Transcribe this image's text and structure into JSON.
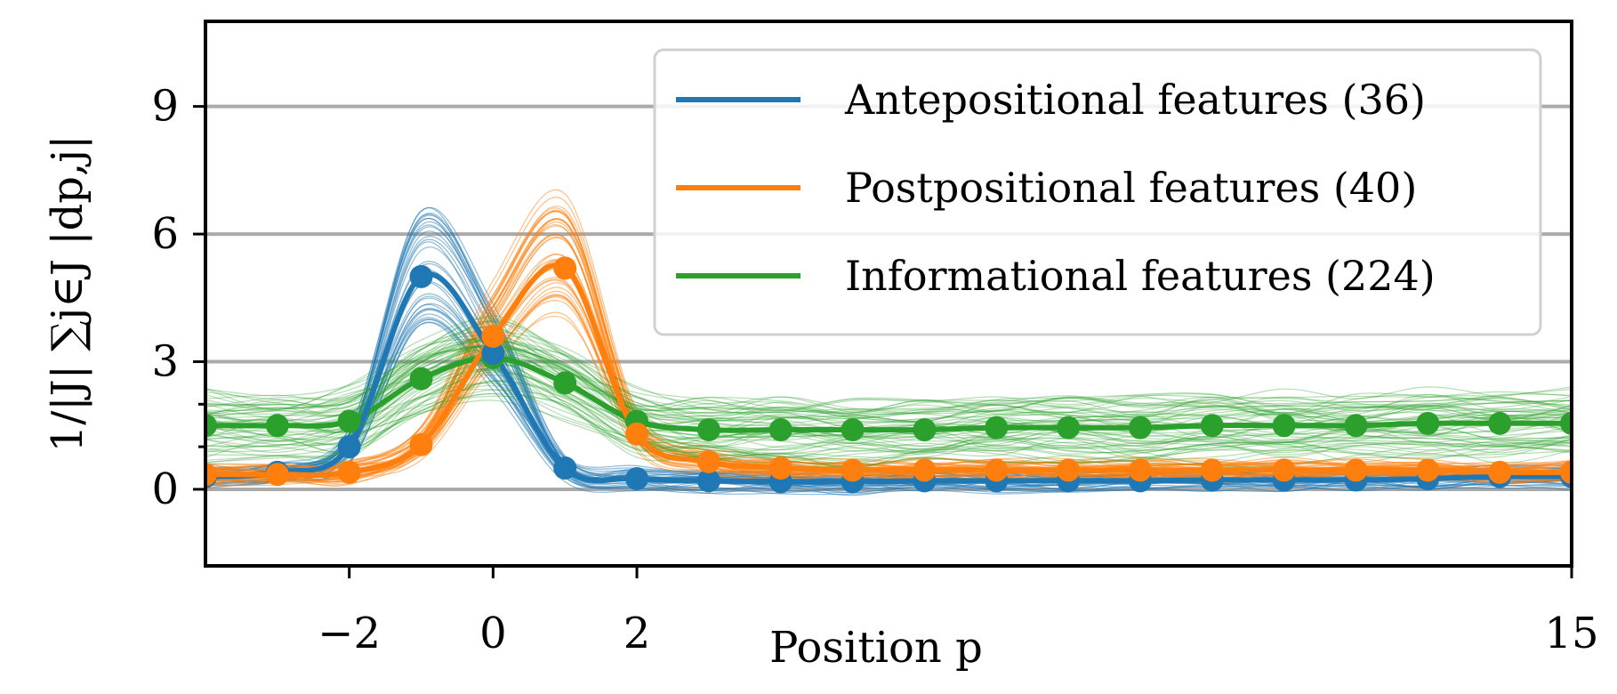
{
  "chart_data": {
    "type": "line",
    "title": "",
    "xlabel": "Position p",
    "ylabel": "1/|J| ∑j∈J |dp,j|",
    "xlim": [
      -4,
      15
    ],
    "ylim": [
      -1.8,
      11.0
    ],
    "xticks": [
      -2,
      0,
      2,
      15
    ],
    "xtick_labels": [
      "−2",
      "0",
      "2",
      "15"
    ],
    "yticks": [
      0,
      3,
      6,
      9
    ],
    "ytick_labels": [
      "0",
      "3",
      "6",
      "9"
    ],
    "grid": "horizontal",
    "legend_placement": "top-right",
    "x": [
      -4,
      -3,
      -2,
      -1,
      0,
      1,
      2,
      3,
      4,
      5,
      6,
      7,
      8,
      9,
      10,
      11,
      12,
      13,
      14,
      15
    ],
    "series": [
      {
        "name": "Antepositional features (36)",
        "color": "#1f77b4",
        "values": [
          0.3,
          0.4,
          1.0,
          5.0,
          3.2,
          0.5,
          0.25,
          0.2,
          0.18,
          0.18,
          0.2,
          0.2,
          0.2,
          0.2,
          0.22,
          0.22,
          0.22,
          0.25,
          0.3,
          0.3
        ]
      },
      {
        "name": "Postpositional features (40)",
        "color": "#ff7f0e",
        "values": [
          0.35,
          0.35,
          0.4,
          1.05,
          3.6,
          5.2,
          1.3,
          0.65,
          0.5,
          0.45,
          0.45,
          0.45,
          0.45,
          0.45,
          0.45,
          0.45,
          0.45,
          0.45,
          0.4,
          0.4
        ]
      },
      {
        "name": "Informational features (224)",
        "color": "#2ca02c",
        "values": [
          1.5,
          1.5,
          1.6,
          2.6,
          3.1,
          2.5,
          1.6,
          1.4,
          1.4,
          1.4,
          1.4,
          1.45,
          1.45,
          1.45,
          1.5,
          1.5,
          1.5,
          1.55,
          1.55,
          1.55
        ]
      }
    ]
  }
}
